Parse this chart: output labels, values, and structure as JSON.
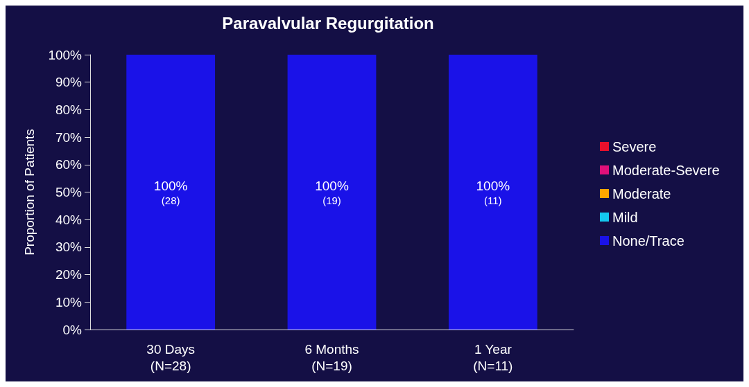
{
  "chart_data": {
    "type": "bar",
    "title": "Paravalvular Regurgitation",
    "ylabel": "Proportion of Patients",
    "stacked": true,
    "legend": "right",
    "grid": false,
    "categories": [
      "30 Days\n(N=28)",
      "6 Months\n(N=19)",
      "1 Year\n(N=11)"
    ],
    "ylim": [
      0,
      100
    ],
    "yticks": [
      {
        "value": 0,
        "label": "0%"
      },
      {
        "value": 10,
        "label": "10%"
      },
      {
        "value": 20,
        "label": "20%"
      },
      {
        "value": 30,
        "label": "30%"
      },
      {
        "value": 40,
        "label": "40%"
      },
      {
        "value": 50,
        "label": "50%"
      },
      {
        "value": 60,
        "label": "60%"
      },
      {
        "value": 70,
        "label": "70%"
      },
      {
        "value": 80,
        "label": "80%"
      },
      {
        "value": 90,
        "label": "90%"
      },
      {
        "value": 100,
        "label": "100%"
      }
    ],
    "series": [
      {
        "name": "None/Trace",
        "color": "#1a12e8",
        "values": [
          100,
          100,
          100
        ],
        "value_labels": [
          "100%\n(28)",
          "100%\n(19)",
          "100%\n(11)"
        ]
      },
      {
        "name": "Mild",
        "color": "#14c8f0",
        "values": [
          0,
          0,
          0
        ]
      },
      {
        "name": "Moderate",
        "color": "#ffa500",
        "values": [
          0,
          0,
          0
        ]
      },
      {
        "name": "Moderate-Severe",
        "color": "#e0107a",
        "values": [
          0,
          0,
          0
        ]
      },
      {
        "name": "Severe",
        "color": "#e8102c",
        "values": [
          0,
          0,
          0
        ]
      }
    ]
  }
}
